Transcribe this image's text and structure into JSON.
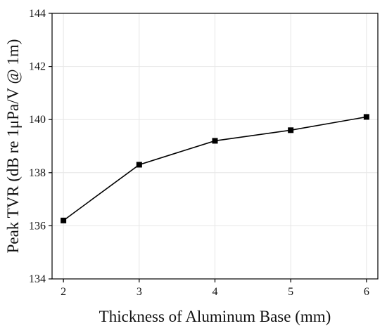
{
  "chart_data": {
    "type": "line",
    "xlabel": "Thickness of Aluminum Base (mm)",
    "ylabel": "Peak TVR (dB re 1μPa/V @ 1m)",
    "x": [
      2,
      3,
      4,
      5,
      6
    ],
    "series": [
      {
        "values": [
          136.2,
          138.3,
          139.2,
          139.6,
          140.1
        ]
      }
    ],
    "xlim": [
      1.85,
      6.15
    ],
    "ylim": [
      134,
      144
    ],
    "xticks": [
      2,
      3,
      4,
      5,
      6
    ],
    "yticks": [
      134,
      136,
      138,
      140,
      142,
      144
    ],
    "xtick_labels": [
      "2",
      "3",
      "4",
      "5",
      "6"
    ],
    "ytick_labels": [
      "134",
      "136",
      "138",
      "140",
      "142",
      "144"
    ],
    "grid": true,
    "marker": "square",
    "colors": {
      "line": "#000000",
      "grid": "#e6e6e6",
      "axis": "#000000"
    }
  }
}
